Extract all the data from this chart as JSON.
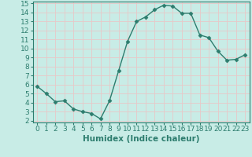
{
  "x": [
    0,
    1,
    2,
    3,
    4,
    5,
    6,
    7,
    8,
    9,
    10,
    11,
    12,
    13,
    14,
    15,
    16,
    17,
    18,
    19,
    20,
    21,
    22,
    23
  ],
  "y": [
    5.8,
    5.0,
    4.1,
    4.2,
    3.3,
    3.0,
    2.8,
    2.2,
    4.2,
    7.5,
    10.8,
    13.0,
    13.5,
    14.3,
    14.8,
    14.7,
    13.9,
    13.9,
    11.5,
    11.2,
    9.7,
    8.7,
    8.8,
    9.3
  ],
  "line_color": "#2d7d6e",
  "marker": "D",
  "markersize": 2.5,
  "linewidth": 1.0,
  "bg_color": "#c8ece6",
  "grid_color": "#e8c8c8",
  "xlabel": "Humidex (Indice chaleur)",
  "xlim": [
    -0.5,
    23.5
  ],
  "ylim": [
    1.8,
    15.2
  ],
  "yticks": [
    2,
    3,
    4,
    5,
    6,
    7,
    8,
    9,
    10,
    11,
    12,
    13,
    14,
    15
  ],
  "xticks": [
    0,
    1,
    2,
    3,
    4,
    5,
    6,
    7,
    8,
    9,
    10,
    11,
    12,
    13,
    14,
    15,
    16,
    17,
    18,
    19,
    20,
    21,
    22,
    23
  ],
  "tick_fontsize": 6.5,
  "xlabel_fontsize": 7.5,
  "tick_color": "#2d7d6e",
  "spine_color": "#2d7d6e"
}
